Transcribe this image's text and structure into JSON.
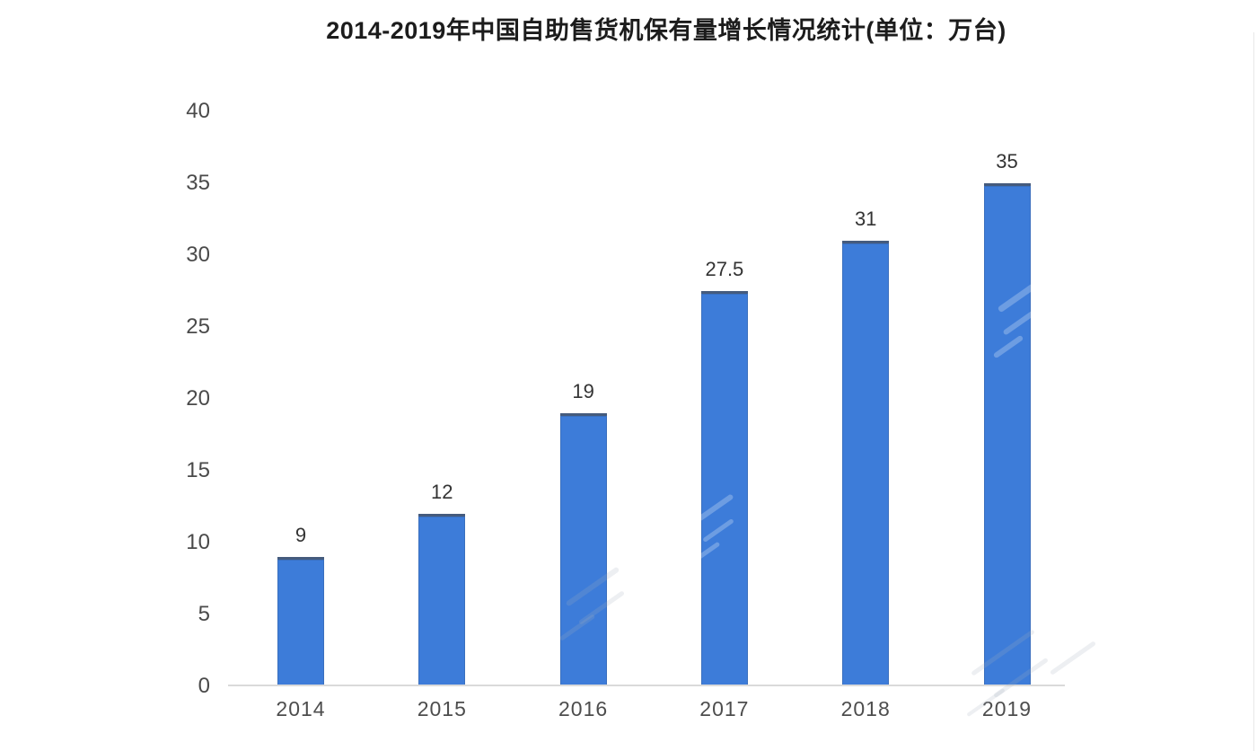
{
  "chart_data": {
    "type": "bar",
    "title": "2014-2019年中国自助售货机保有量增长情况统计(单位：万台)",
    "categories": [
      "2014",
      "2015",
      "2016",
      "2017",
      "2018",
      "2019"
    ],
    "values": [
      9,
      12,
      19,
      27.5,
      31,
      35
    ],
    "value_labels": [
      "9",
      "12",
      "19",
      "27.5",
      "31",
      "35"
    ],
    "unit": "万台",
    "xlabel": "",
    "ylabel": "",
    "ylim": [
      0,
      40
    ],
    "yticks": [
      0,
      5,
      10,
      15,
      20,
      25,
      30,
      35,
      40
    ],
    "grid": false,
    "legend": null,
    "bar_color": "#3d7cd9",
    "axis_line_color": "#dadada",
    "title_color": "#1c1c1c",
    "tick_label_color": "#4a4a4a",
    "value_label_color": "#333333"
  }
}
